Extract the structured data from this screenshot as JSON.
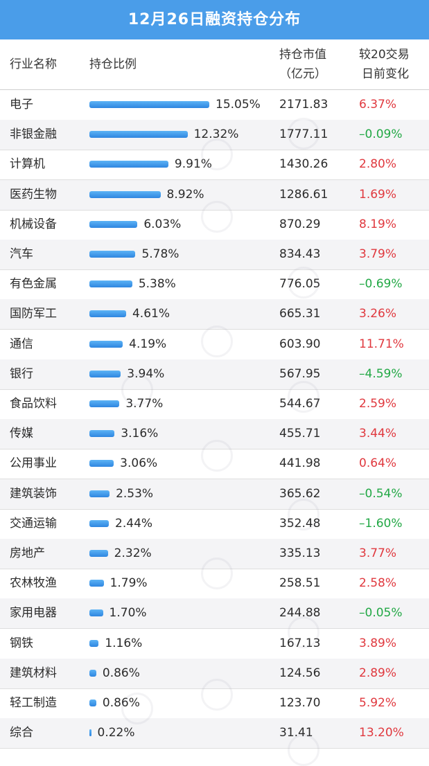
{
  "title": "12月26日融资持仓分布",
  "header": {
    "industry": "行业名称",
    "ratio": "持仓比例",
    "value_line1": "持仓市值",
    "value_line2": "（亿元）",
    "change_line1": "较20交易",
    "change_line2": "日前变化"
  },
  "colors": {
    "up": "#e0383e",
    "down": "#22a845",
    "bar": "#3b8fe6",
    "title_bg": "#4a9de9"
  },
  "chart_data": {
    "type": "table",
    "rows": [
      {
        "industry": "电子",
        "ratio": 15.05,
        "ratio_label": "15.05%",
        "value": "2171.83",
        "change": 6.37,
        "change_label": "6.37%"
      },
      {
        "industry": "非银金融",
        "ratio": 12.32,
        "ratio_label": "12.32%",
        "value": "1777.11",
        "change": -0.09,
        "change_label": "–0.09%"
      },
      {
        "industry": "计算机",
        "ratio": 9.91,
        "ratio_label": "9.91%",
        "value": "1430.26",
        "change": 2.8,
        "change_label": "2.80%"
      },
      {
        "industry": "医药生物",
        "ratio": 8.92,
        "ratio_label": "8.92%",
        "value": "1286.61",
        "change": 1.69,
        "change_label": "1.69%"
      },
      {
        "industry": "机械设备",
        "ratio": 6.03,
        "ratio_label": "6.03%",
        "value": "870.29",
        "change": 8.19,
        "change_label": "8.19%"
      },
      {
        "industry": "汽车",
        "ratio": 5.78,
        "ratio_label": "5.78%",
        "value": "834.43",
        "change": 3.79,
        "change_label": "3.79%"
      },
      {
        "industry": "有色金属",
        "ratio": 5.38,
        "ratio_label": "5.38%",
        "value": "776.05",
        "change": -0.69,
        "change_label": "–0.69%"
      },
      {
        "industry": "国防军工",
        "ratio": 4.61,
        "ratio_label": "4.61%",
        "value": "665.31",
        "change": 3.26,
        "change_label": "3.26%"
      },
      {
        "industry": "通信",
        "ratio": 4.19,
        "ratio_label": "4.19%",
        "value": "603.90",
        "change": 11.71,
        "change_label": "11.71%"
      },
      {
        "industry": "银行",
        "ratio": 3.94,
        "ratio_label": "3.94%",
        "value": "567.95",
        "change": -4.59,
        "change_label": "–4.59%"
      },
      {
        "industry": "食品饮料",
        "ratio": 3.77,
        "ratio_label": "3.77%",
        "value": "544.67",
        "change": 2.59,
        "change_label": "2.59%"
      },
      {
        "industry": "传媒",
        "ratio": 3.16,
        "ratio_label": "3.16%",
        "value": "455.71",
        "change": 3.44,
        "change_label": "3.44%"
      },
      {
        "industry": "公用事业",
        "ratio": 3.06,
        "ratio_label": "3.06%",
        "value": "441.98",
        "change": 0.64,
        "change_label": "0.64%"
      },
      {
        "industry": "建筑装饰",
        "ratio": 2.53,
        "ratio_label": "2.53%",
        "value": "365.62",
        "change": -0.54,
        "change_label": "–0.54%"
      },
      {
        "industry": "交通运输",
        "ratio": 2.44,
        "ratio_label": "2.44%",
        "value": "352.48",
        "change": -1.6,
        "change_label": "–1.60%"
      },
      {
        "industry": "房地产",
        "ratio": 2.32,
        "ratio_label": "2.32%",
        "value": "335.13",
        "change": 3.77,
        "change_label": "3.77%"
      },
      {
        "industry": "农林牧渔",
        "ratio": 1.79,
        "ratio_label": "1.79%",
        "value": "258.51",
        "change": 2.58,
        "change_label": "2.58%"
      },
      {
        "industry": "家用电器",
        "ratio": 1.7,
        "ratio_label": "1.70%",
        "value": "244.88",
        "change": -0.05,
        "change_label": "–0.05%"
      },
      {
        "industry": "钢铁",
        "ratio": 1.16,
        "ratio_label": "1.16%",
        "value": "167.13",
        "change": 3.89,
        "change_label": "3.89%"
      },
      {
        "industry": "建筑材料",
        "ratio": 0.86,
        "ratio_label": "0.86%",
        "value": "124.56",
        "change": 2.89,
        "change_label": "2.89%"
      },
      {
        "industry": "轻工制造",
        "ratio": 0.86,
        "ratio_label": "0.86%",
        "value": "123.70",
        "change": 5.92,
        "change_label": "5.92%"
      },
      {
        "industry": "综合",
        "ratio": 0.22,
        "ratio_label": "0.22%",
        "value": "31.41",
        "change": 13.2,
        "change_label": "13.20%"
      }
    ]
  }
}
